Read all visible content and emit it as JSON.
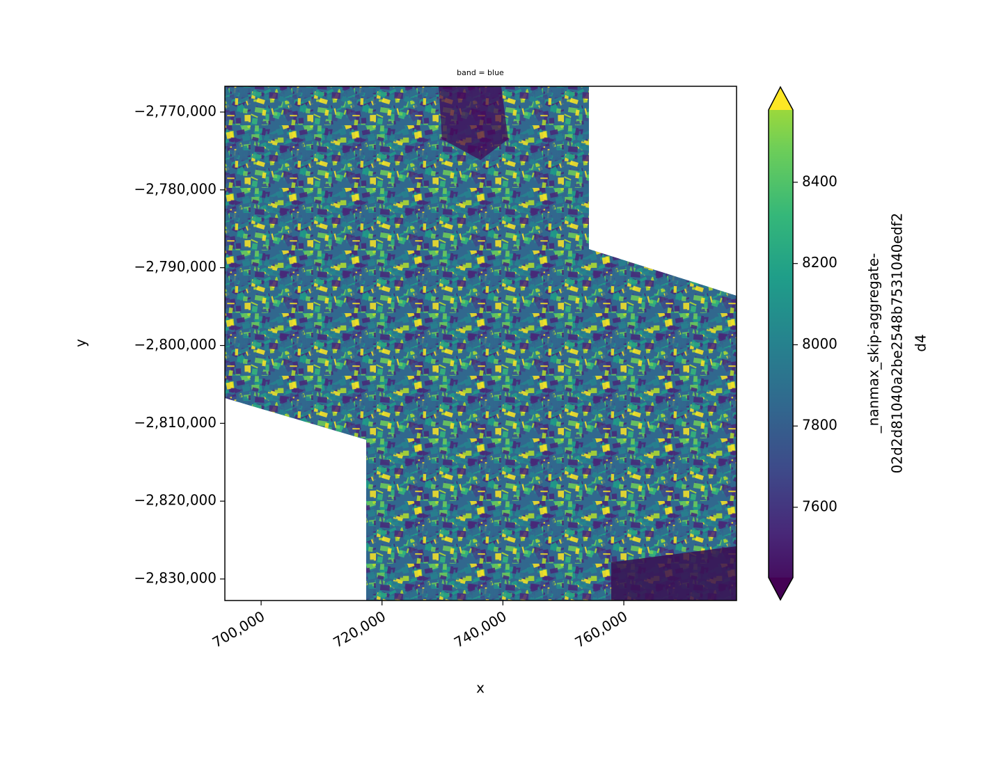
{
  "chart_data": {
    "type": "raster",
    "title": "band = blue",
    "x_label": "x",
    "y_label": "y",
    "xlim": [
      694000,
      778650
    ],
    "ylim": [
      -2832770,
      -2766690
    ],
    "xticks": [
      {
        "value": 700000,
        "label": "700,000"
      },
      {
        "value": 720000,
        "label": "720,000"
      },
      {
        "value": 740000,
        "label": "740,000"
      },
      {
        "value": 760000,
        "label": "760,000"
      }
    ],
    "yticks": [
      {
        "value": -2770000,
        "label": "−2,770,000"
      },
      {
        "value": -2780000,
        "label": "−2,780,000"
      },
      {
        "value": -2790000,
        "label": "−2,790,000"
      },
      {
        "value": -2800000,
        "label": "−2,800,000"
      },
      {
        "value": -2810000,
        "label": "−2,810,000"
      },
      {
        "value": -2820000,
        "label": "−2,820,000"
      },
      {
        "value": -2830000,
        "label": "−2,830,000"
      }
    ],
    "colormap": "viridis",
    "colorbar_extend": "both",
    "clim": [
      7427,
      8578
    ],
    "colorbar_ticks": [
      7600,
      7800,
      8000,
      8200,
      8400
    ],
    "colorbar_label": [
      "_nanmax_skip-aggregate-",
      "02d2d81040a2be2548b7531040edf2",
      "d4"
    ]
  }
}
